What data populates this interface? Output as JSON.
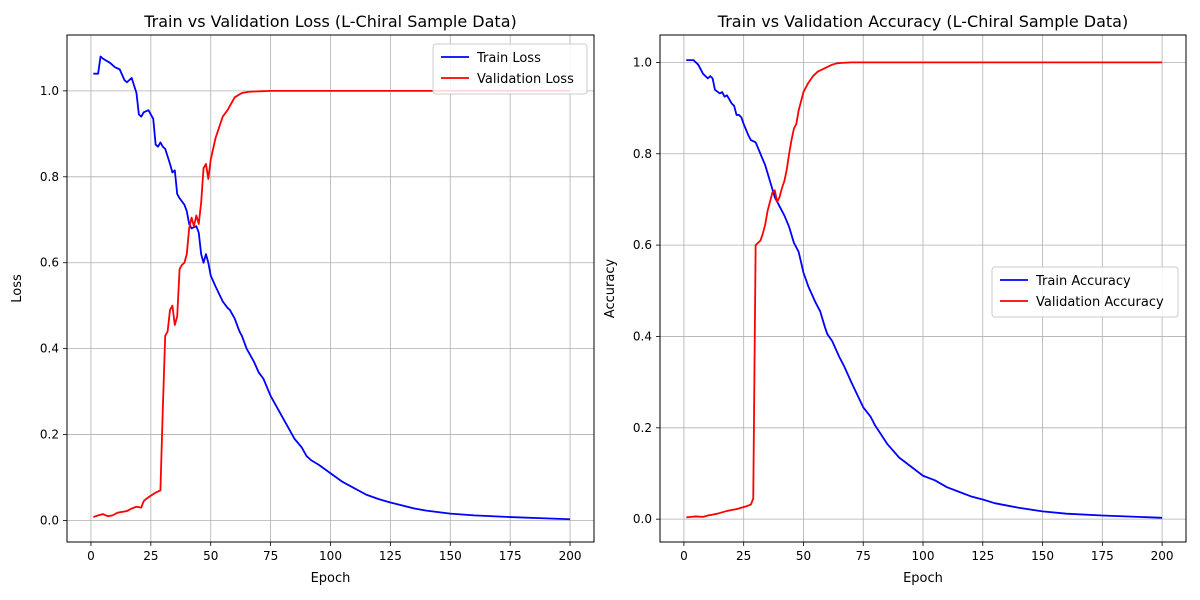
{
  "chart_data": [
    {
      "type": "line",
      "title": "Train vs Validation Loss (L-Chiral Sample Data)",
      "xlabel": "Epoch",
      "ylabel": "Loss",
      "xlim": [
        -10,
        210
      ],
      "ylim": [
        -0.05,
        1.13
      ],
      "xticks": [
        0,
        25,
        50,
        75,
        100,
        125,
        150,
        175,
        200
      ],
      "yticks": [
        0.0,
        0.2,
        0.4,
        0.6,
        0.8,
        1.0
      ],
      "grid": true,
      "legend": "top-right",
      "series": [
        {
          "name": "Train Loss",
          "color": "#0000ff",
          "x": [
            1,
            3,
            4,
            5,
            8,
            10,
            12,
            14,
            15,
            17,
            19,
            20,
            21,
            22,
            24,
            26,
            27,
            28,
            29,
            30,
            31,
            33,
            34,
            35,
            36,
            37,
            39,
            40,
            41,
            42,
            44,
            45,
            46,
            47,
            48,
            49,
            50,
            52,
            55,
            57,
            58,
            60,
            62,
            63,
            65,
            68,
            70,
            72,
            75,
            78,
            80,
            83,
            85,
            88,
            90,
            92,
            95,
            100,
            105,
            110,
            115,
            120,
            125,
            130,
            135,
            140,
            150,
            160,
            175,
            190,
            200
          ],
          "y": [
            1.04,
            1.04,
            1.08,
            1.075,
            1.065,
            1.055,
            1.05,
            1.025,
            1.02,
            1.03,
            0.995,
            0.945,
            0.94,
            0.95,
            0.955,
            0.935,
            0.875,
            0.87,
            0.88,
            0.87,
            0.865,
            0.83,
            0.81,
            0.815,
            0.76,
            0.75,
            0.735,
            0.72,
            0.69,
            0.68,
            0.685,
            0.67,
            0.62,
            0.6,
            0.62,
            0.6,
            0.57,
            0.545,
            0.51,
            0.495,
            0.49,
            0.47,
            0.44,
            0.43,
            0.4,
            0.37,
            0.345,
            0.33,
            0.29,
            0.26,
            0.24,
            0.21,
            0.19,
            0.17,
            0.15,
            0.14,
            0.13,
            0.11,
            0.09,
            0.075,
            0.06,
            0.05,
            0.042,
            0.035,
            0.028,
            0.023,
            0.016,
            0.012,
            0.008,
            0.005,
            0.003
          ]
        },
        {
          "name": "Validation Loss",
          "color": "#ff0000",
          "x": [
            1,
            3,
            5,
            7,
            9,
            11,
            13,
            15,
            17,
            19,
            21,
            22,
            23,
            25,
            27,
            29,
            30,
            31,
            32,
            33,
            34,
            35,
            36,
            37,
            38,
            39,
            40,
            41,
            42,
            43,
            44,
            45,
            46,
            47,
            48,
            49,
            50,
            52,
            55,
            57,
            60,
            63,
            66,
            70,
            75,
            80,
            100,
            150,
            200
          ],
          "y": [
            0.008,
            0.012,
            0.015,
            0.01,
            0.012,
            0.018,
            0.02,
            0.022,
            0.028,
            0.032,
            0.03,
            0.045,
            0.05,
            0.058,
            0.065,
            0.07,
            0.26,
            0.43,
            0.44,
            0.49,
            0.5,
            0.455,
            0.475,
            0.585,
            0.595,
            0.6,
            0.62,
            0.68,
            0.705,
            0.685,
            0.71,
            0.69,
            0.74,
            0.82,
            0.83,
            0.795,
            0.84,
            0.89,
            0.94,
            0.955,
            0.985,
            0.995,
            0.998,
            0.999,
            1.0,
            1.0,
            1.0,
            1.0,
            1.0
          ]
        }
      ]
    },
    {
      "type": "line",
      "title": "Train vs Validation Accuracy (L-Chiral Sample Data)",
      "xlabel": "Epoch",
      "ylabel": "Accuracy",
      "xlim": [
        -10,
        210
      ],
      "ylim": [
        -0.05,
        1.06
      ],
      "xticks": [
        0,
        25,
        50,
        75,
        100,
        125,
        150,
        175,
        200
      ],
      "yticks": [
        0.0,
        0.2,
        0.4,
        0.6,
        0.8,
        1.0
      ],
      "grid": true,
      "legend": "center-right",
      "series": [
        {
          "name": "Train Accuracy",
          "color": "#0000ff",
          "x": [
            1,
            4,
            6,
            8,
            10,
            11,
            12,
            13,
            15,
            16,
            17,
            18,
            20,
            21,
            22,
            23,
            24,
            25,
            27,
            28,
            30,
            32,
            34,
            36,
            38,
            40,
            42,
            44,
            46,
            48,
            50,
            52,
            55,
            57,
            59,
            60,
            62,
            65,
            67,
            70,
            75,
            78,
            80,
            85,
            90,
            95,
            100,
            105,
            110,
            115,
            120,
            125,
            130,
            140,
            150,
            160,
            175,
            190,
            200
          ],
          "y": [
            1.005,
            1.005,
            0.995,
            0.975,
            0.965,
            0.97,
            0.965,
            0.94,
            0.932,
            0.935,
            0.925,
            0.928,
            0.91,
            0.905,
            0.885,
            0.885,
            0.88,
            0.865,
            0.84,
            0.83,
            0.825,
            0.8,
            0.775,
            0.74,
            0.705,
            0.685,
            0.665,
            0.64,
            0.605,
            0.585,
            0.54,
            0.51,
            0.475,
            0.455,
            0.42,
            0.405,
            0.39,
            0.355,
            0.335,
            0.3,
            0.245,
            0.225,
            0.205,
            0.165,
            0.135,
            0.115,
            0.095,
            0.085,
            0.07,
            0.06,
            0.05,
            0.043,
            0.035,
            0.025,
            0.017,
            0.012,
            0.008,
            0.005,
            0.003
          ]
        },
        {
          "name": "Validation Accuracy",
          "color": "#ff0000",
          "x": [
            1,
            3,
            5,
            8,
            10,
            12,
            14,
            16,
            18,
            20,
            22,
            24,
            26,
            28,
            29,
            30,
            32,
            33,
            34,
            35,
            36,
            37,
            38,
            39,
            40,
            41,
            42,
            43,
            44,
            45,
            46,
            47,
            48,
            49,
            50,
            52,
            54,
            56,
            58,
            60,
            62,
            64,
            66,
            70,
            80,
            100,
            150,
            200
          ],
          "y": [
            0.004,
            0.005,
            0.006,
            0.005,
            0.008,
            0.01,
            0.012,
            0.015,
            0.018,
            0.02,
            0.022,
            0.025,
            0.028,
            0.032,
            0.045,
            0.6,
            0.61,
            0.625,
            0.645,
            0.675,
            0.695,
            0.715,
            0.72,
            0.695,
            0.705,
            0.725,
            0.74,
            0.765,
            0.8,
            0.83,
            0.855,
            0.865,
            0.895,
            0.915,
            0.935,
            0.955,
            0.97,
            0.98,
            0.985,
            0.99,
            0.995,
            0.998,
            0.999,
            1.0,
            1.0,
            1.0,
            1.0,
            1.0
          ]
        }
      ]
    }
  ]
}
